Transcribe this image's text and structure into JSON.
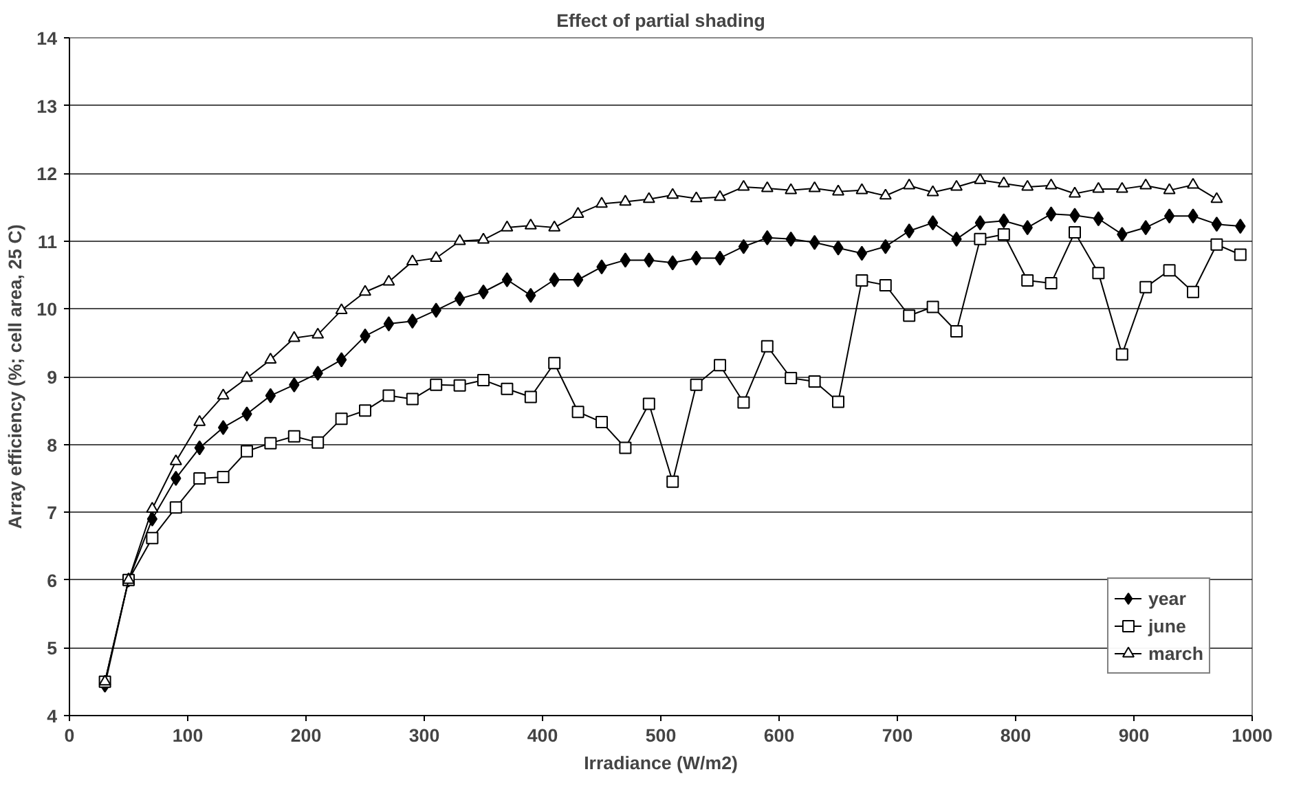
{
  "chart_data": {
    "type": "line",
    "title": "Effect of partial shading",
    "xlabel": "Irradiance (W/m2)",
    "ylabel": "Array efficiency (%; cell area, 25 C)",
    "x": [
      30,
      50,
      70,
      90,
      110,
      130,
      150,
      170,
      190,
      210,
      230,
      250,
      270,
      290,
      310,
      330,
      350,
      370,
      390,
      410,
      430,
      450,
      470,
      490,
      510,
      530,
      550,
      570,
      590,
      610,
      630,
      650,
      670,
      690,
      710,
      730,
      750,
      770,
      790,
      810,
      830,
      850,
      870,
      890,
      910,
      930,
      950,
      970,
      990
    ],
    "xlim": [
      0,
      1000
    ],
    "xticks": [
      0,
      100,
      200,
      300,
      400,
      500,
      600,
      700,
      800,
      900,
      1000
    ],
    "ylim": [
      4,
      14
    ],
    "yticks": [
      4,
      5,
      6,
      7,
      8,
      9,
      10,
      11,
      12,
      13,
      14
    ],
    "grid": "y",
    "legend": "bottom right",
    "line_style": "solid",
    "series": [
      {
        "name": "year",
        "color": "#000000",
        "marker": "diamond",
        "values": [
          4.45,
          6.0,
          6.9,
          7.5,
          7.95,
          8.25,
          8.45,
          8.72,
          8.88,
          9.05,
          9.25,
          9.6,
          9.78,
          9.82,
          9.98,
          10.15,
          10.25,
          10.43,
          10.2,
          10.43,
          10.43,
          10.62,
          10.72,
          10.72,
          10.68,
          10.75,
          10.75,
          10.92,
          11.05,
          11.03,
          10.98,
          10.9,
          10.82,
          10.92,
          11.15,
          11.27,
          11.03,
          11.27,
          11.3,
          11.2,
          11.4,
          11.38,
          11.33,
          11.1,
          11.2,
          11.37,
          11.37,
          11.25,
          11.22
        ]
      },
      {
        "name": "june",
        "color": "#000000",
        "marker": "square",
        "values": [
          4.5,
          6.0,
          6.62,
          7.07,
          7.5,
          7.52,
          7.9,
          8.02,
          8.12,
          8.03,
          8.38,
          8.5,
          8.72,
          8.67,
          8.88,
          8.87,
          8.95,
          8.82,
          8.7,
          9.2,
          8.48,
          8.33,
          7.95,
          8.6,
          7.45,
          8.88,
          9.17,
          8.62,
          9.45,
          8.98,
          8.93,
          8.63,
          10.42,
          10.35,
          9.9,
          10.03,
          9.67,
          11.03,
          11.1,
          10.42,
          10.38,
          11.13,
          10.53,
          9.33,
          10.32,
          10.57,
          10.25,
          10.95,
          10.8
        ]
      },
      {
        "name": "march",
        "color": "#000000",
        "marker": "triangle",
        "values": [
          4.5,
          6.0,
          7.05,
          7.75,
          8.33,
          8.72,
          8.98,
          9.25,
          9.57,
          9.62,
          9.98,
          10.25,
          10.4,
          10.7,
          10.75,
          11.0,
          11.02,
          11.2,
          11.23,
          11.2,
          11.4,
          11.55,
          11.58,
          11.62,
          11.68,
          11.63,
          11.65,
          11.8,
          11.78,
          11.75,
          11.78,
          11.73,
          11.75,
          11.67,
          11.82,
          11.72,
          11.8,
          11.9,
          11.85,
          11.8,
          11.82,
          11.7,
          11.77,
          11.77,
          11.82,
          11.75,
          11.83,
          11.62,
          null
        ]
      }
    ]
  }
}
